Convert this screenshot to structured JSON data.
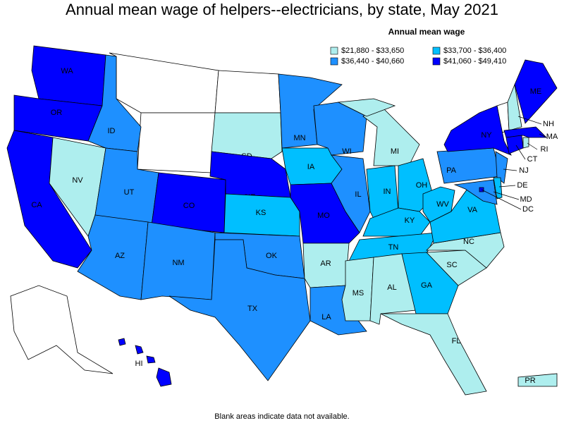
{
  "title": "Annual mean wage of helpers--electricians, by state, May 2021",
  "legend": {
    "title": "Annual mean wage",
    "items": [
      {
        "label": "$21,880 - $33,650",
        "color": "#aeeeee"
      },
      {
        "label": "$33,700 - $36,400",
        "color": "#00bfff"
      },
      {
        "label": "$36,440 - $40,660",
        "color": "#1e90ff"
      },
      {
        "label": "$41,060 - $49,410",
        "color": "#0000ff"
      }
    ]
  },
  "states": [
    {
      "label": "WA",
      "color": "#0000ff"
    },
    {
      "label": "OR",
      "color": "#0000ff"
    },
    {
      "label": "CA",
      "color": "#0000ff"
    },
    {
      "label": "NV",
      "color": "#aeeeee"
    },
    {
      "label": "ID",
      "color": "#1e90ff"
    },
    {
      "label": "UT",
      "color": "#1e90ff"
    },
    {
      "label": "AZ",
      "color": "#1e90ff"
    },
    {
      "label": "CO",
      "color": "#0000ff"
    },
    {
      "label": "NM",
      "color": "#1e90ff"
    },
    {
      "label": "SD",
      "color": "#aeeeee"
    },
    {
      "label": "NE",
      "color": "#0000ff"
    },
    {
      "label": "KS",
      "color": "#00bfff"
    },
    {
      "label": "OK",
      "color": "#1e90ff"
    },
    {
      "label": "TX",
      "color": "#1e90ff"
    },
    {
      "label": "MN",
      "color": "#1e90ff"
    },
    {
      "label": "IA",
      "color": "#00bfff"
    },
    {
      "label": "MO",
      "color": "#0000ff"
    },
    {
      "label": "AR",
      "color": "#aeeeee"
    },
    {
      "label": "LA",
      "color": "#1e90ff"
    },
    {
      "label": "WI",
      "color": "#1e90ff"
    },
    {
      "label": "IL",
      "color": "#1e90ff"
    },
    {
      "label": "MI",
      "color": "#aeeeee"
    },
    {
      "label": "IN",
      "color": "#00bfff"
    },
    {
      "label": "OH",
      "color": "#00bfff"
    },
    {
      "label": "KY",
      "color": "#00bfff"
    },
    {
      "label": "TN",
      "color": "#00bfff"
    },
    {
      "label": "MS",
      "color": "#aeeeee"
    },
    {
      "label": "AL",
      "color": "#aeeeee"
    },
    {
      "label": "GA",
      "color": "#00bfff"
    },
    {
      "label": "FL",
      "color": "#aeeeee"
    },
    {
      "label": "SC",
      "color": "#aeeeee"
    },
    {
      "label": "NC",
      "color": "#aeeeee"
    },
    {
      "label": "VA",
      "color": "#00bfff"
    },
    {
      "label": "WV",
      "color": "#00bfff"
    },
    {
      "label": "PA",
      "color": "#1e90ff"
    },
    {
      "label": "NY",
      "color": "#0000ff"
    },
    {
      "label": "ME",
      "color": "#0000ff"
    },
    {
      "label": "NH",
      "color": "#aeeeee"
    },
    {
      "label": "MA",
      "color": "#0000ff"
    },
    {
      "label": "RI",
      "color": "#aeeeee"
    },
    {
      "label": "CT",
      "color": "#0000ff"
    },
    {
      "label": "NJ",
      "color": "#1e90ff"
    },
    {
      "label": "DE",
      "color": "#00bfff"
    },
    {
      "label": "MD",
      "color": "#1e90ff"
    },
    {
      "label": "DC",
      "color": "#0000ff"
    },
    {
      "label": "HI",
      "color": "#0000ff"
    },
    {
      "label": "PR",
      "color": "#aeeeee"
    }
  ],
  "footnote": "Blank areas indicate data not available."
}
